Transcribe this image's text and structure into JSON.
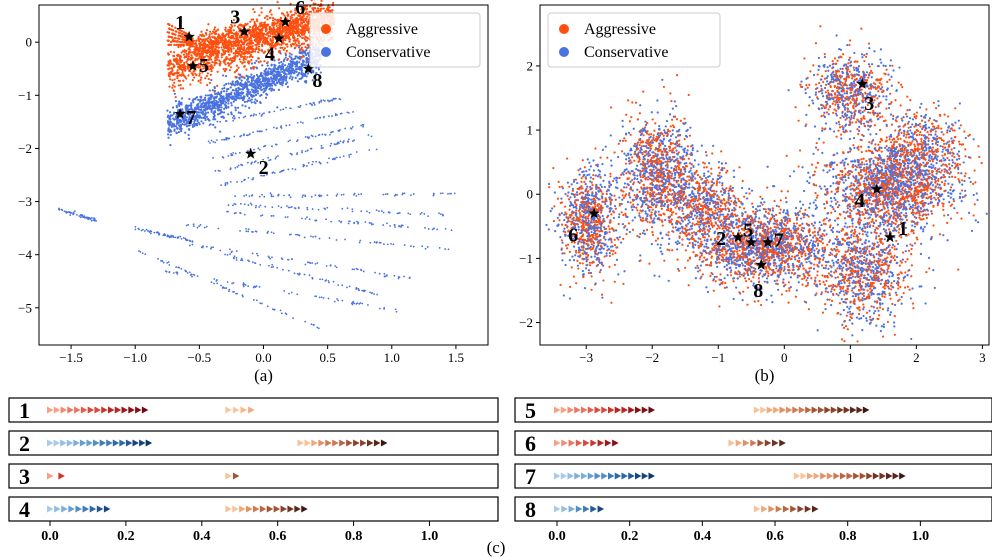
{
  "figure_caption": "(c)",
  "colors": {
    "aggressive": "#ff4f0f",
    "conservative": "#4a72e0",
    "star": "#000000",
    "axis": "#000000"
  },
  "chart_data": [
    {
      "type": "scatter",
      "panel_label": "(a)",
      "xlim": [
        -1.75,
        1.75
      ],
      "ylim": [
        -5.7,
        0.7
      ],
      "xticks": [
        -1.5,
        -1.0,
        -0.5,
        0.0,
        0.5,
        1.0,
        1.5
      ],
      "xtick_labels": [
        "−1.5",
        "−1.0",
        "−0.5",
        "0.0",
        "0.5",
        "1.0",
        "1.5"
      ],
      "yticks": [
        0,
        -1,
        -2,
        -3,
        -4,
        -5
      ],
      "ytick_labels": [
        "0",
        "−1",
        "−2",
        "−3",
        "−4",
        "−5"
      ],
      "legend": {
        "position": "top-right",
        "entries": [
          "Aggressive",
          "Conservative"
        ]
      },
      "grid": false,
      "series": [
        {
          "name": "Aggressive",
          "color": "#ff4f0f",
          "clusters": [
            {
              "x_range": [
                -0.75,
                0.55
              ],
              "y_center": [
                -0.5,
                0.45
              ],
              "spread": 0.22,
              "n": 1400
            },
            {
              "x_range": [
                -0.55,
                0.55
              ],
              "y_center": [
                -0.1,
                0.45
              ],
              "spread": 0.12,
              "n": 700
            }
          ]
        },
        {
          "name": "Conservative",
          "color": "#4a72e0",
          "clusters": [
            {
              "x_range": [
                -0.75,
                0.45
              ],
              "y_center": [
                -1.55,
                -0.25
              ],
              "spread": 0.15,
              "n": 1300
            }
          ],
          "bands": [
            {
              "x_range": [
                -0.45,
                0.6
              ],
              "y_range": [
                -1.55,
                -1.05
              ]
            },
            {
              "x_range": [
                -0.45,
                0.7
              ],
              "y_range": [
                -1.9,
                -1.3
              ]
            },
            {
              "x_range": [
                -0.4,
                0.8
              ],
              "y_range": [
                -2.2,
                -1.55
              ]
            },
            {
              "x_range": [
                -0.4,
                0.85
              ],
              "y_range": [
                -2.45,
                -1.75
              ]
            },
            {
              "x_range": [
                -0.35,
                0.9
              ],
              "y_range": [
                -2.7,
                -2.0
              ]
            },
            {
              "x_range": [
                -0.3,
                1.5
              ],
              "y_range": [
                -2.9,
                -2.85
              ]
            },
            {
              "x_range": [
                -0.3,
                1.5
              ],
              "y_range": [
                -3.05,
                -3.25
              ]
            },
            {
              "x_range": [
                -0.3,
                1.5
              ],
              "y_range": [
                -3.2,
                -3.55
              ]
            },
            {
              "x_range": [
                -0.6,
                1.45
              ],
              "y_range": [
                -3.45,
                -3.9
              ]
            },
            {
              "x_range": [
                -0.6,
                1.15
              ],
              "y_range": [
                -3.8,
                -4.45
              ]
            },
            {
              "x_range": [
                -0.3,
                0.9
              ],
              "y_range": [
                -4.0,
                -4.75
              ]
            },
            {
              "x_range": [
                -0.8,
                1.05
              ],
              "y_range": [
                -4.3,
                -5.05
              ]
            },
            {
              "x_range": [
                -1.0,
                -0.55
              ],
              "y_range": [
                -3.5,
                -3.75
              ]
            },
            {
              "x_range": [
                -1.0,
                0.45
              ],
              "y_range": [
                -3.9,
                -5.4
              ]
            },
            {
              "x_range": [
                -1.6,
                -1.3
              ],
              "y_range": [
                -3.15,
                -3.35
              ]
            }
          ]
        }
      ],
      "markers": [
        {
          "label": "1",
          "x": -0.58,
          "y": 0.1
        },
        {
          "label": "2",
          "x": -0.1,
          "y": -2.1
        },
        {
          "label": "3",
          "x": -0.15,
          "y": 0.2
        },
        {
          "label": "4",
          "x": 0.12,
          "y": 0.07
        },
        {
          "label": "5",
          "x": -0.55,
          "y": -0.45
        },
        {
          "label": "6",
          "x": 0.17,
          "y": 0.38
        },
        {
          "label": "7",
          "x": -0.65,
          "y": -1.35
        },
        {
          "label": "8",
          "x": 0.35,
          "y": -0.5
        }
      ]
    },
    {
      "type": "scatter",
      "panel_label": "(b)",
      "xlim": [
        -3.7,
        3.1
      ],
      "ylim": [
        -2.35,
        2.95
      ],
      "xticks": [
        -3,
        -2,
        -1,
        0,
        1,
        2,
        3
      ],
      "xtick_labels": [
        "−3",
        "−2",
        "−1",
        "0",
        "1",
        "2",
        "3"
      ],
      "yticks": [
        2,
        1,
        0,
        -1,
        -2
      ],
      "ytick_labels": [
        "2",
        "1",
        "0",
        "−1",
        "−2"
      ],
      "legend": {
        "position": "top-left",
        "entries": [
          "Aggressive",
          "Conservative"
        ]
      },
      "grid": false,
      "clusters": [
        {
          "cx": 1.0,
          "cy": 1.6,
          "sx": 0.3,
          "sy": 0.3,
          "n": 700
        },
        {
          "cx": -2.95,
          "cy": -0.4,
          "sx": 0.22,
          "sy": 0.4,
          "n": 900
        },
        {
          "cx": -1.9,
          "cy": 0.3,
          "sx": 0.28,
          "sy": 0.45,
          "n": 1100
        },
        {
          "cx": -1.2,
          "cy": -0.15,
          "sx": 0.3,
          "sy": 0.3,
          "n": 600
        },
        {
          "cx": -0.35,
          "cy": -0.8,
          "sx": 0.5,
          "sy": 0.3,
          "n": 1700
        },
        {
          "cx": 1.6,
          "cy": 0.1,
          "sx": 0.5,
          "sy": 0.35,
          "n": 1800
        },
        {
          "cx": 1.2,
          "cy": -1.2,
          "sx": 0.35,
          "sy": 0.4,
          "n": 900
        },
        {
          "cx": 2.1,
          "cy": 0.75,
          "sx": 0.35,
          "sy": 0.3,
          "n": 500
        }
      ],
      "markers": [
        {
          "label": "1",
          "x": 1.6,
          "y": -0.67
        },
        {
          "label": "2",
          "x": -0.7,
          "y": -0.67
        },
        {
          "label": "3",
          "x": 1.18,
          "y": 1.72
        },
        {
          "label": "4",
          "x": 1.4,
          "y": 0.08
        },
        {
          "label": "5",
          "x": -0.5,
          "y": -0.75
        },
        {
          "label": "6",
          "x": -2.88,
          "y": -0.3
        },
        {
          "label": "7",
          "x": -0.25,
          "y": -0.75
        },
        {
          "label": "8",
          "x": -0.35,
          "y": -1.1
        }
      ]
    },
    {
      "type": "timeline",
      "panel_label": "(c)",
      "xlim": [
        -0.05,
        1.07
      ],
      "xticks": [
        0.0,
        0.2,
        0.4,
        0.6,
        0.8,
        1.0
      ],
      "xtick_labels": [
        "0.0",
        "0.2",
        "0.4",
        "0.6",
        "0.8",
        "1.0"
      ],
      "rows": [
        {
          "label": "1",
          "column": 0,
          "a": {
            "start": 0.0,
            "end": 0.25,
            "palette": "reds"
          },
          "b": {
            "start": 0.47,
            "end": 0.53,
            "palette": "peach"
          }
        },
        {
          "label": "2",
          "column": 0,
          "a": {
            "start": 0.0,
            "end": 0.26,
            "palette": "blues"
          },
          "b": {
            "start": 0.66,
            "end": 0.88,
            "palette": "browns"
          }
        },
        {
          "label": "3",
          "column": 0,
          "a": {
            "start": 0.0,
            "end": 0.03,
            "palette": "reds"
          },
          "b": {
            "start": 0.47,
            "end": 0.49,
            "palette": "browns"
          }
        },
        {
          "label": "4",
          "column": 0,
          "a": {
            "start": 0.0,
            "end": 0.15,
            "palette": "blues"
          },
          "b": {
            "start": 0.47,
            "end": 0.67,
            "palette": "browns"
          }
        },
        {
          "label": "5",
          "column": 1,
          "a": {
            "start": 0.0,
            "end": 0.26,
            "palette": "reds"
          },
          "b": {
            "start": 0.55,
            "end": 0.85,
            "palette": "browns"
          }
        },
        {
          "label": "6",
          "column": 1,
          "a": {
            "start": 0.0,
            "end": 0.16,
            "palette": "reds"
          },
          "b": {
            "start": 0.48,
            "end": 0.62,
            "palette": "browns"
          }
        },
        {
          "label": "7",
          "column": 1,
          "a": {
            "start": 0.0,
            "end": 0.26,
            "palette": "blues"
          },
          "b": {
            "start": 0.66,
            "end": 0.95,
            "palette": "browns"
          }
        },
        {
          "label": "8",
          "column": 1,
          "a": {
            "start": 0.0,
            "end": 0.12,
            "palette": "blues"
          },
          "b": {
            "start": 0.55,
            "end": 0.71,
            "palette": "browns"
          }
        }
      ]
    }
  ]
}
